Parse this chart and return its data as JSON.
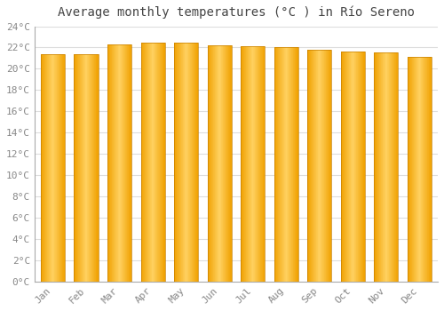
{
  "title": "Average monthly temperatures (°C ) in Río Sereno",
  "months": [
    "Jan",
    "Feb",
    "Mar",
    "Apr",
    "May",
    "Jun",
    "Jul",
    "Aug",
    "Sep",
    "Oct",
    "Nov",
    "Dec"
  ],
  "values": [
    21.4,
    21.4,
    22.3,
    22.5,
    22.5,
    22.2,
    22.1,
    22.0,
    21.8,
    21.6,
    21.5,
    21.1
  ],
  "ylim": [
    0,
    24
  ],
  "yticks": [
    0,
    2,
    4,
    6,
    8,
    10,
    12,
    14,
    16,
    18,
    20,
    22,
    24
  ],
  "ytick_labels": [
    "0°C",
    "2°C",
    "4°C",
    "6°C",
    "8°C",
    "10°C",
    "12°C",
    "14°C",
    "16°C",
    "18°C",
    "20°C",
    "22°C",
    "24°C"
  ],
  "bar_color_center": "#FFD060",
  "bar_color_edge": "#F0A000",
  "bar_edge_color": "#C88000",
  "background_color": "#FFFFFF",
  "grid_color": "#DDDDDD",
  "title_fontsize": 10,
  "tick_fontsize": 8,
  "tick_color": "#888888"
}
